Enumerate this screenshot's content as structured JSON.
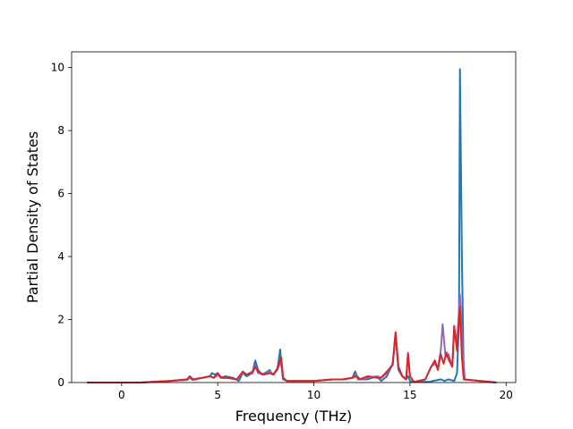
{
  "chart_data": {
    "type": "line",
    "title": "",
    "xlabel": "Frequency (THz)",
    "ylabel": "Partial Density of States",
    "xlim": [
      -2.6,
      20.5
    ],
    "ylim": [
      0,
      10.5
    ],
    "xticks": [
      0,
      5,
      10,
      15,
      20
    ],
    "xtick_labels": [
      "0",
      "5",
      "10",
      "15",
      "20"
    ],
    "yticks": [
      0,
      2,
      4,
      6,
      8,
      10
    ],
    "ytick_labels": [
      "0",
      "2",
      "4",
      "6",
      "8",
      "10"
    ],
    "grid": false,
    "legend": false,
    "series": [
      {
        "color": "#1f77b4",
        "x": [
          -1.8,
          1.0,
          2.5,
          3.4,
          3.55,
          3.7,
          4.2,
          4.6,
          4.7,
          4.85,
          5.0,
          5.15,
          5.4,
          5.8,
          6.1,
          6.3,
          6.5,
          6.8,
          6.95,
          7.1,
          7.3,
          7.6,
          7.7,
          7.85,
          8.1,
          8.25,
          8.3,
          8.4,
          8.6,
          9.0,
          10.0,
          11.0,
          11.5,
          12.0,
          12.15,
          12.3,
          12.8,
          13.3,
          13.5,
          13.8,
          14.1,
          14.25,
          14.4,
          14.6,
          14.8,
          14.9,
          15.0,
          15.2,
          16.0,
          16.2,
          16.6,
          16.8,
          17.0,
          17.3,
          17.45,
          17.55,
          17.6,
          17.7,
          17.8,
          19.5
        ],
        "y": [
          0,
          0,
          0.05,
          0.08,
          0.15,
          0.08,
          0.15,
          0.2,
          0.3,
          0.25,
          0.3,
          0.15,
          0.2,
          0.15,
          0.05,
          0.3,
          0.2,
          0.3,
          0.7,
          0.4,
          0.25,
          0.35,
          0.4,
          0.25,
          0.4,
          1.05,
          0.6,
          0.1,
          0.05,
          0.05,
          0.05,
          0.1,
          0.1,
          0.15,
          0.35,
          0.1,
          0.1,
          0.2,
          0.05,
          0.2,
          0.6,
          1.5,
          0.4,
          0.2,
          0.1,
          0.2,
          0.05,
          0.02,
          0.02,
          0.05,
          0.1,
          0.05,
          0.1,
          0.05,
          0.3,
          2.0,
          9.95,
          4.0,
          0.1,
          0
        ]
      },
      {
        "color": "#9467bd",
        "x": [
          -1.8,
          1.0,
          2.5,
          3.4,
          3.55,
          3.7,
          4.2,
          4.6,
          4.8,
          5.0,
          5.2,
          5.5,
          6.0,
          6.3,
          6.5,
          6.8,
          6.95,
          7.1,
          7.4,
          7.7,
          7.9,
          8.1,
          8.3,
          8.4,
          8.6,
          9.0,
          10.0,
          11.0,
          11.5,
          12.0,
          12.2,
          12.4,
          12.8,
          13.3,
          13.5,
          13.8,
          14.1,
          14.25,
          14.4,
          14.6,
          14.8,
          14.9,
          15.0,
          15.2,
          15.8,
          16.1,
          16.3,
          16.45,
          16.6,
          16.7,
          16.85,
          17.0,
          17.2,
          17.3,
          17.45,
          17.6,
          17.75,
          17.85,
          19.5
        ],
        "y": [
          0,
          0,
          0.05,
          0.1,
          0.15,
          0.1,
          0.15,
          0.2,
          0.15,
          0.25,
          0.15,
          0.15,
          0.1,
          0.3,
          0.25,
          0.35,
          0.55,
          0.3,
          0.25,
          0.35,
          0.25,
          0.4,
          0.7,
          0.15,
          0.05,
          0.05,
          0.05,
          0.1,
          0.1,
          0.15,
          0.25,
          0.1,
          0.15,
          0.2,
          0.15,
          0.3,
          0.6,
          1.55,
          0.5,
          0.2,
          0.1,
          0.95,
          0.2,
          0.02,
          0.1,
          0.5,
          0.6,
          0.45,
          1.0,
          1.85,
          0.8,
          0.9,
          0.5,
          1.7,
          1.3,
          2.8,
          1.0,
          0.1,
          0
        ]
      },
      {
        "color": "#d62728",
        "x": [
          -1.8,
          1.0,
          2.5,
          3.4,
          3.55,
          3.7,
          4.2,
          4.6,
          4.8,
          5.0,
          5.2,
          5.5,
          6.0,
          6.3,
          6.5,
          6.8,
          6.95,
          7.1,
          7.4,
          7.7,
          7.9,
          8.1,
          8.3,
          8.4,
          8.6,
          9.0,
          10.0,
          11.0,
          11.5,
          12.0,
          12.2,
          12.4,
          12.8,
          13.3,
          13.5,
          13.8,
          14.1,
          14.25,
          14.4,
          14.6,
          14.8,
          14.9,
          15.0,
          15.2,
          15.8,
          16.1,
          16.3,
          16.45,
          16.6,
          16.75,
          16.9,
          17.0,
          17.2,
          17.3,
          17.45,
          17.6,
          17.7,
          17.8,
          19.5
        ],
        "y": [
          0,
          0,
          0.05,
          0.1,
          0.2,
          0.1,
          0.15,
          0.2,
          0.15,
          0.3,
          0.15,
          0.15,
          0.1,
          0.35,
          0.25,
          0.3,
          0.5,
          0.35,
          0.25,
          0.3,
          0.25,
          0.45,
          0.8,
          0.15,
          0.05,
          0.05,
          0.05,
          0.1,
          0.1,
          0.15,
          0.2,
          0.1,
          0.2,
          0.15,
          0.15,
          0.35,
          0.55,
          1.6,
          0.5,
          0.2,
          0.1,
          0.9,
          0.2,
          0.02,
          0.1,
          0.5,
          0.7,
          0.4,
          0.9,
          0.6,
          0.95,
          0.75,
          0.5,
          1.8,
          1.0,
          2.4,
          0.8,
          0.1,
          0
        ]
      }
    ]
  }
}
